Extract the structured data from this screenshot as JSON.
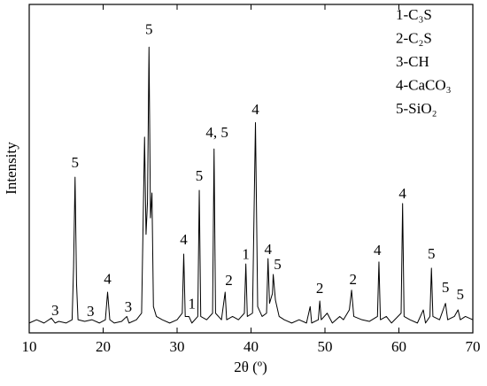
{
  "chart_data": {
    "type": "line",
    "x_label": "2θ (º)",
    "y_label": "Intensity",
    "color": "#000000",
    "xlim": [
      10,
      70
    ],
    "xticks": [
      10,
      20,
      30,
      40,
      50,
      60,
      70
    ],
    "ylim": [
      0,
      100
    ],
    "legend_position": "upper right",
    "legend": [
      "1-C₃S",
      "2-C₂S",
      "3-CH",
      "4-CaCO₃",
      "5-SiO₂"
    ],
    "x": [
      10,
      11,
      12,
      13,
      13.5,
      14,
      15,
      15.8,
      16.0,
      16.2,
      16.4,
      16.6,
      17.5,
      18.5,
      19.5,
      20.3,
      20.6,
      20.9,
      21.5,
      22.5,
      23.2,
      23.5,
      24.5,
      25.2,
      25.6,
      25.8,
      26.0,
      26.2,
      26.4,
      26.6,
      26.8,
      27.2,
      28,
      29,
      30,
      30.7,
      30.9,
      31.1,
      31.6,
      32,
      32.8,
      33.0,
      33.2,
      34,
      34.8,
      35.0,
      35.2,
      36,
      36.5,
      36.7,
      37.5,
      38.3,
      39.1,
      39.3,
      39.5,
      40.2,
      40.6,
      40.9,
      41.5,
      42.1,
      42.3,
      42.5,
      42.9,
      43.0,
      43.3,
      43.8,
      44.5,
      45.5,
      46.5,
      47.5,
      48.0,
      48.2,
      49.1,
      49.3,
      49.5,
      50.3,
      51,
      52,
      52.5,
      53.3,
      53.6,
      53.9,
      55,
      56,
      57.1,
      57.3,
      57.5,
      58.3,
      59,
      60.3,
      60.5,
      60.7,
      61.5,
      62.5,
      63.3,
      63.6,
      64.2,
      64.4,
      64.6,
      65.5,
      66.3,
      66.6,
      67.5,
      68.0,
      68.3,
      69,
      70
    ],
    "values": [
      3,
      4,
      3,
      4.5,
      3,
      3.5,
      3,
      4,
      20,
      47.4,
      15,
      4,
      3.5,
      4,
      3,
      4,
      12.4,
      4,
      3,
      3.5,
      5,
      3,
      4,
      6,
      59.6,
      30,
      40,
      87,
      35,
      42.6,
      8,
      5,
      4,
      3,
      4,
      6,
      24,
      5,
      5,
      3,
      5,
      43.4,
      5,
      4,
      6,
      56,
      6,
      4,
      12.4,
      4,
      5,
      4,
      6,
      21,
      5,
      6,
      64,
      8,
      5,
      6,
      22.6,
      9,
      12,
      17.8,
      10,
      5,
      4,
      3,
      4,
      3,
      8,
      3,
      4,
      9.7,
      4,
      6,
      3,
      5,
      4,
      7,
      13,
      5,
      4,
      3.5,
      5,
      21.6,
      4,
      5,
      3,
      6,
      39.4,
      5,
      4,
      3,
      7,
      3,
      5,
      19.7,
      5,
      4,
      9,
      4,
      5,
      7,
      4,
      5,
      4
    ],
    "annotations": [
      {
        "text": "3",
        "x": 13.5,
        "y": 6.5
      },
      {
        "text": "5",
        "x": 16.2,
        "y": 51.5
      },
      {
        "text": "3",
        "x": 18.3,
        "y": 6.2
      },
      {
        "text": "4",
        "x": 20.6,
        "y": 16
      },
      {
        "text": "3",
        "x": 23.4,
        "y": 7.5
      },
      {
        "text": "5",
        "x": 26.2,
        "y": 92
      },
      {
        "text": "4",
        "x": 30.9,
        "y": 28
      },
      {
        "text": "1",
        "x": 32.0,
        "y": 8.4
      },
      {
        "text": "5",
        "x": 33.0,
        "y": 47.4
      },
      {
        "text": "4, 5",
        "x": 35.4,
        "y": 60.6
      },
      {
        "text": "2",
        "x": 37.0,
        "y": 15.6
      },
      {
        "text": "1",
        "x": 39.3,
        "y": 23.5
      },
      {
        "text": "4",
        "x": 40.6,
        "y": 67.6
      },
      {
        "text": "4",
        "x": 42.3,
        "y": 25
      },
      {
        "text": "5",
        "x": 43.6,
        "y": 20.5
      },
      {
        "text": "2",
        "x": 49.3,
        "y": 13.2
      },
      {
        "text": "2",
        "x": 53.8,
        "y": 15.9
      },
      {
        "text": "4",
        "x": 57.1,
        "y": 24.8
      },
      {
        "text": "4",
        "x": 60.5,
        "y": 42
      },
      {
        "text": "5",
        "x": 64.4,
        "y": 23.7
      },
      {
        "text": "5",
        "x": 66.3,
        "y": 13.5
      },
      {
        "text": "5",
        "x": 68.3,
        "y": 11.3
      }
    ]
  }
}
